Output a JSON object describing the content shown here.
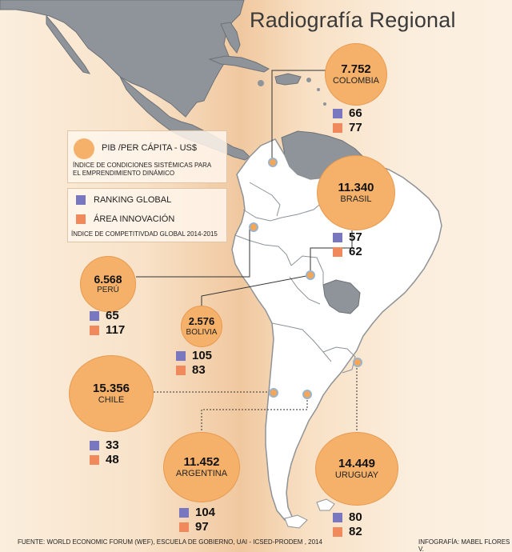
{
  "title": "Radiografía Regional",
  "legend": {
    "pib_label": "PIB /PER CÁPITA - US$",
    "pib_desc_1": "ÍNDICE DE CONDICIONES SISTÉMICAS PARA",
    "pib_desc_2": "EL EMPRENDIMIENTO DINÁMICO",
    "ranking_label": "RANKING GLOBAL",
    "innovation_label": "ÁREA INNOVACIÓN",
    "competitiveness_label": "ÍNDICE DE COMPETITIVDAD GLOBAL 2014-2015"
  },
  "countries": {
    "colombia": {
      "name": "COLOMBIA",
      "pib": "7.752",
      "ranking": "66",
      "innovation": "77"
    },
    "brasil": {
      "name": "BRASIL",
      "pib": "11.340",
      "ranking": "57",
      "innovation": "62"
    },
    "peru": {
      "name": "PERÚ",
      "pib": "6.568",
      "ranking": "65",
      "innovation": "117"
    },
    "bolivia": {
      "name": "BOLIVIA",
      "pib": "2.576",
      "ranking": "105",
      "innovation": "83"
    },
    "chile": {
      "name": "CHILE",
      "pib": "15.356",
      "ranking": "33",
      "innovation": "48"
    },
    "argentina": {
      "name": "ARGENTINA",
      "pib": "11.452",
      "ranking": "104",
      "innovation": "97"
    },
    "uruguay": {
      "name": "URUGUAY",
      "pib": "14.449",
      "ranking": "80",
      "innovation": "82"
    }
  },
  "footer": {
    "source": "FUENTE: WORLD ECONOMIC FORUM (WEF), ESCUELA DE GOBIERNO, UAI - ICSED-PRODEM , 2014",
    "credit": "INFOGRAFÍA: MABEL FLORES V."
  },
  "colors": {
    "bubble": "#f5b16a",
    "ranking": "#7877c0",
    "innovation": "#f08a5d",
    "land_north": "#8f949a",
    "land_south": "#ffffff"
  }
}
